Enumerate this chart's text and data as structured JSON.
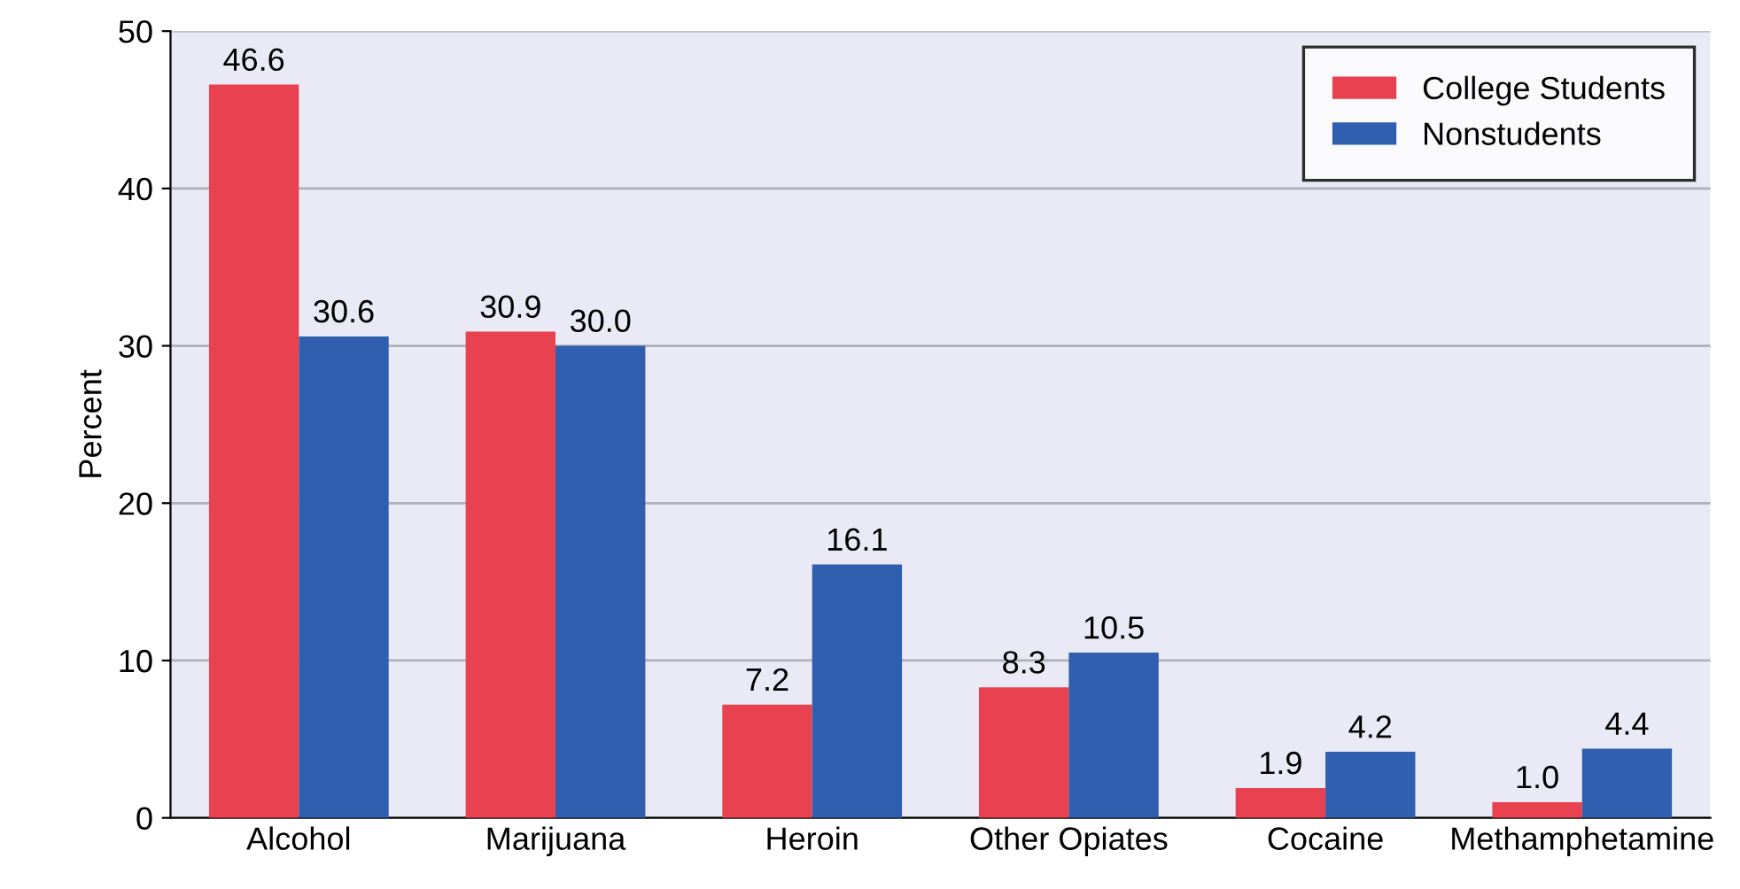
{
  "chart_data": {
    "type": "bar",
    "ylabel": "Percent",
    "categories": [
      "Alcohol",
      "Marijuana",
      "Heroin",
      "Other Opiates",
      "Cocaine",
      "Methamphetamine"
    ],
    "series": [
      {
        "name": "College Students",
        "color": "#e8414f",
        "values": [
          46.6,
          30.9,
          7.2,
          8.3,
          1.9,
          1.0
        ],
        "value_labels": [
          "46.6",
          "30.9",
          "7.2",
          "8.3",
          "1.9",
          "1.0"
        ]
      },
      {
        "name": "Nonstudents",
        "color": "#2f5fae",
        "values": [
          30.6,
          30.0,
          16.1,
          10.5,
          4.2,
          4.4
        ],
        "value_labels": [
          "30.6",
          "30.0",
          "16.1",
          "10.5",
          "4.2",
          "4.4"
        ]
      }
    ],
    "ylim": [
      0,
      50
    ],
    "yticks": [
      0,
      10,
      20,
      30,
      40,
      50
    ],
    "grid": "y",
    "legend": "top right"
  }
}
